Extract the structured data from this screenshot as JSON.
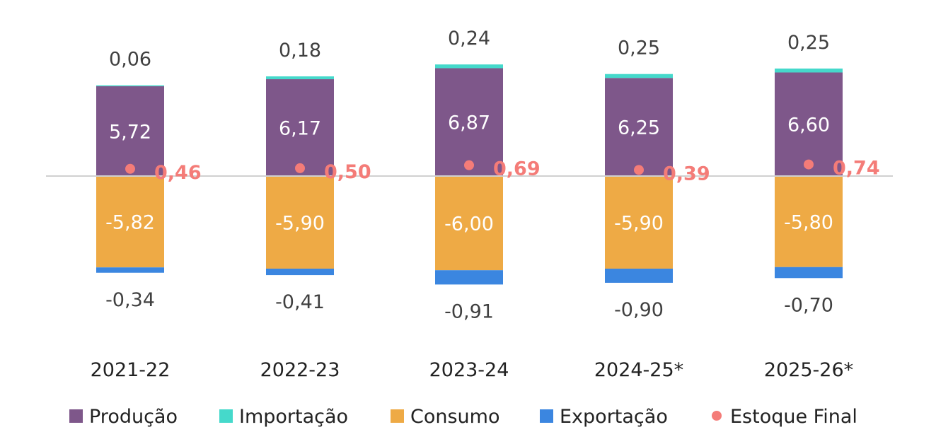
{
  "chart_data": {
    "type": "bar",
    "stacked": true,
    "title": "",
    "xlabel": "",
    "ylabel": "",
    "categories": [
      "2021-22",
      "2022-23",
      "2023-24",
      "2024-25*",
      "2025-26*"
    ],
    "series": [
      {
        "name": "Produção",
        "kind": "bar",
        "color": "#7E578A",
        "values": [
          5.72,
          6.17,
          6.87,
          6.25,
          6.6
        ]
      },
      {
        "name": "Importação",
        "kind": "bar",
        "color": "#45D9CB",
        "values": [
          0.06,
          0.18,
          0.24,
          0.25,
          0.25
        ]
      },
      {
        "name": "Consumo",
        "kind": "bar",
        "color": "#EEAA45",
        "values": [
          -5.82,
          -5.9,
          -6.0,
          -5.9,
          -5.8
        ]
      },
      {
        "name": "Exportação",
        "kind": "bar",
        "color": "#3B86E0",
        "values": [
          -0.34,
          -0.41,
          -0.91,
          -0.9,
          -0.7
        ]
      },
      {
        "name": "Estoque Final",
        "kind": "point",
        "color": "#F47C78",
        "values": [
          0.46,
          0.5,
          0.69,
          0.39,
          0.74
        ]
      }
    ],
    "grid": false,
    "legend": "bottom"
  }
}
